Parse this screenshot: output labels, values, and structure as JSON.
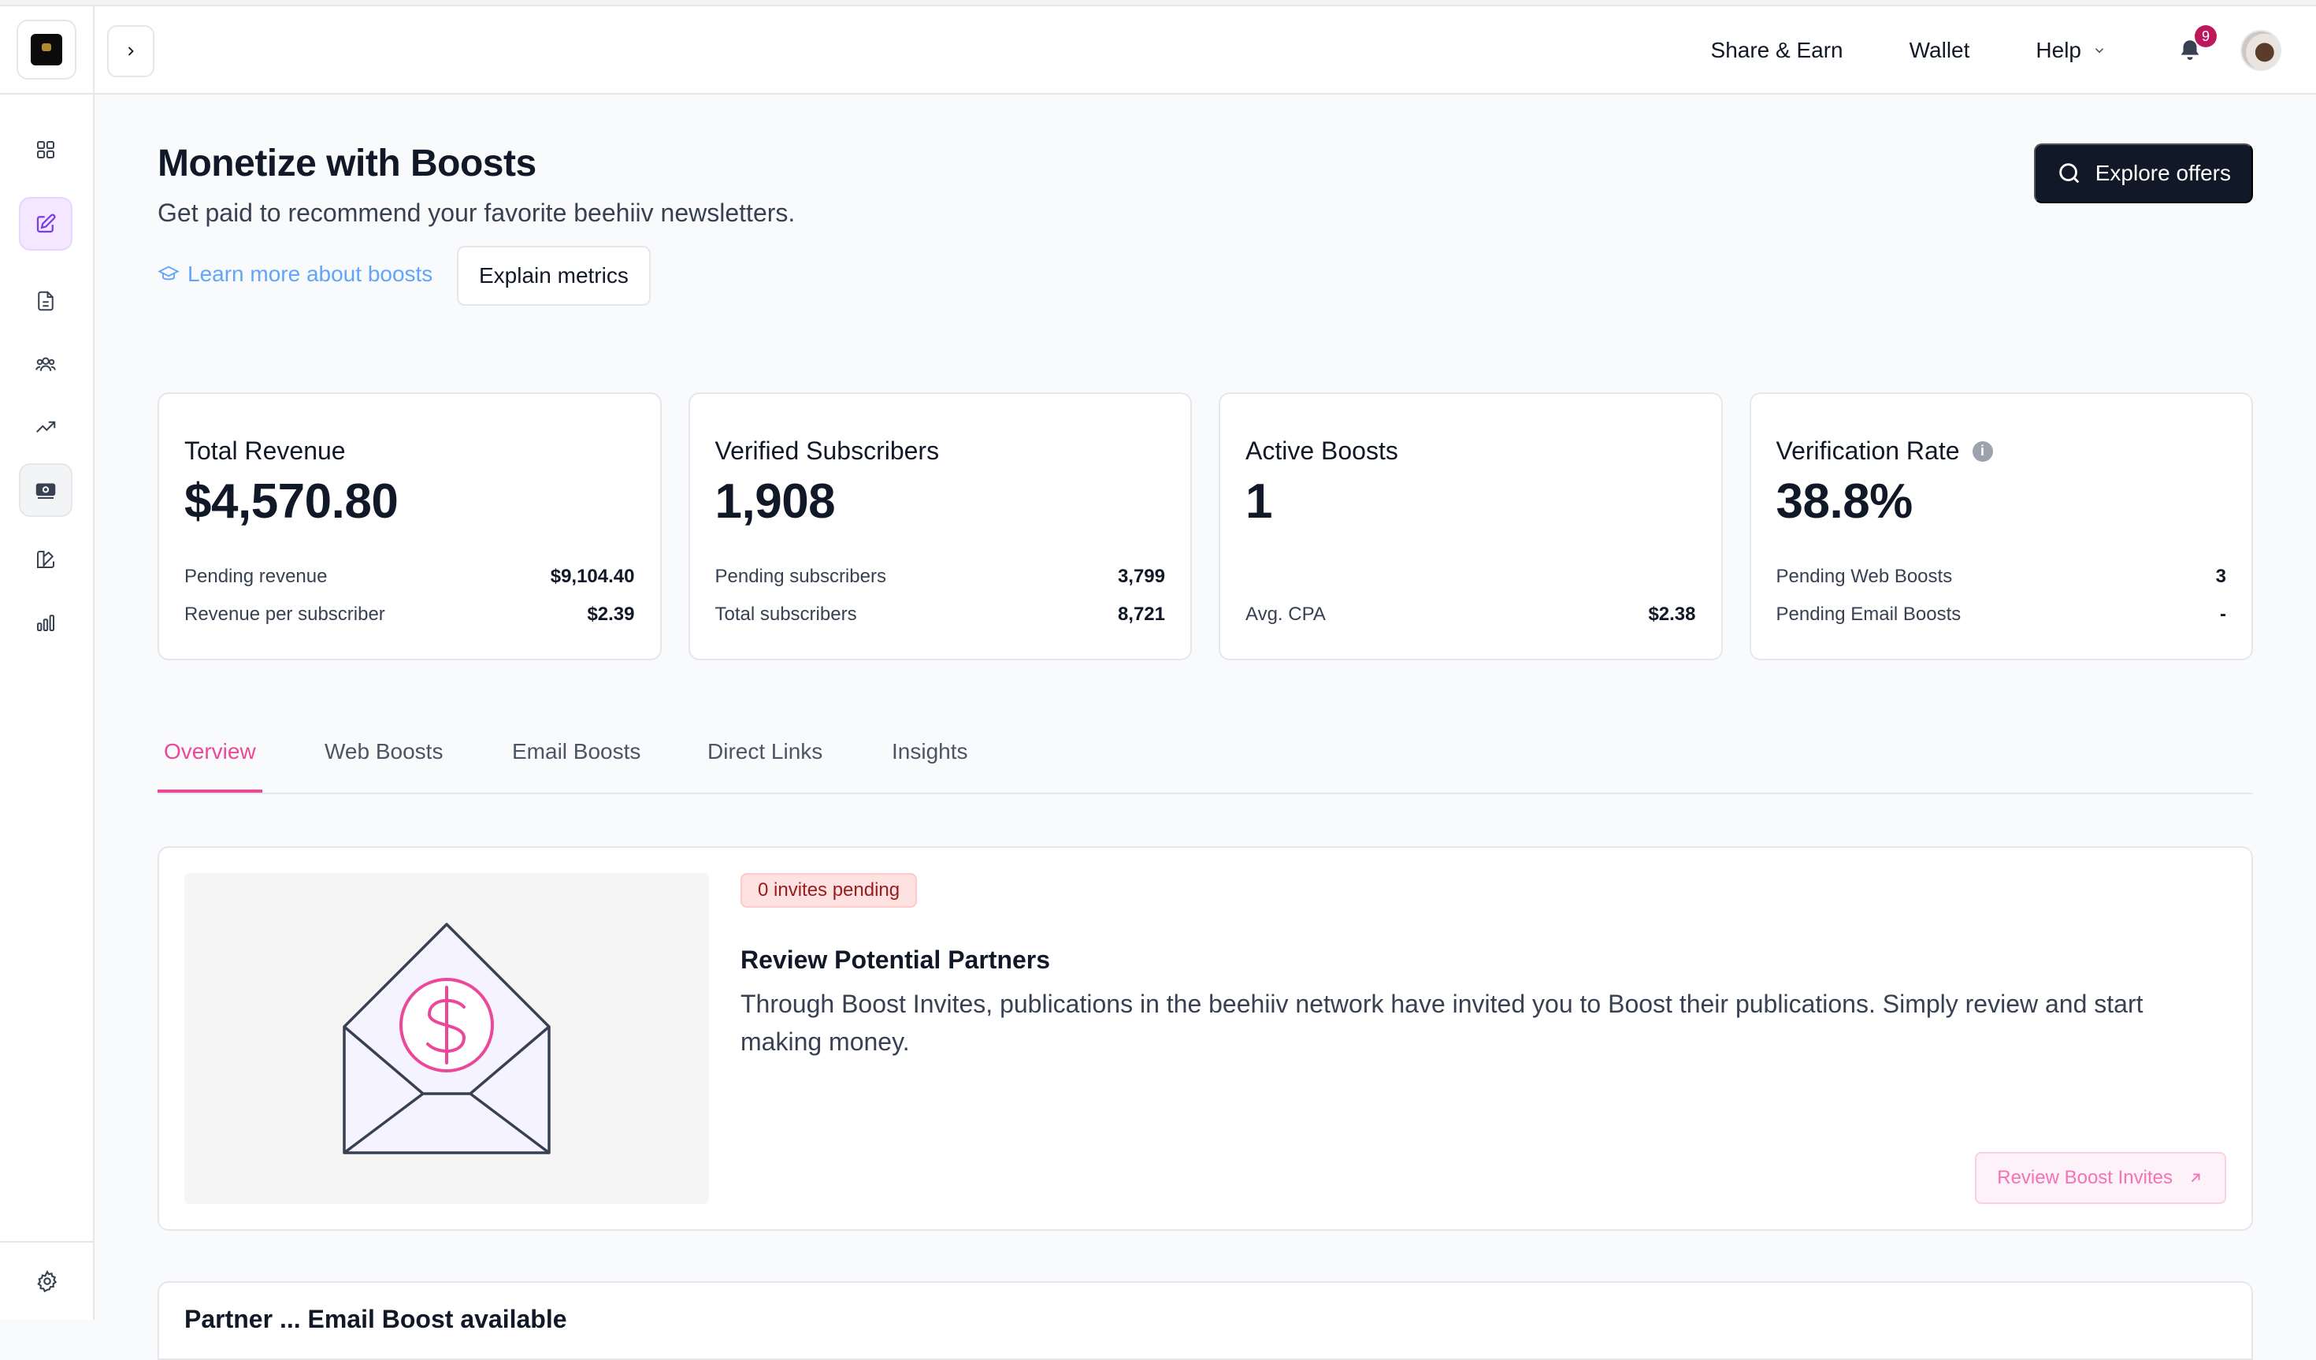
{
  "topbar": {
    "links": [
      {
        "label": "Share & Earn"
      },
      {
        "label": "Wallet"
      },
      {
        "label": "Help"
      }
    ],
    "notifications_count": "9"
  },
  "sidebar": {
    "items": [
      {
        "icon": "dashboard-grid-icon"
      },
      {
        "icon": "compose-icon",
        "active": true
      },
      {
        "icon": "posts-document-icon"
      },
      {
        "icon": "audience-icon"
      },
      {
        "icon": "growth-trend-icon"
      },
      {
        "icon": "monetize-money-icon",
        "selected": true
      },
      {
        "icon": "design-icon"
      },
      {
        "icon": "analytics-bars-icon"
      }
    ],
    "bottom_icon": "settings-gear-icon"
  },
  "header": {
    "title": "Monetize with Boosts",
    "subtitle": "Get paid to recommend your favorite beehiiv newsletters.",
    "learn_more": "Learn more about boosts",
    "explain_metrics": "Explain metrics",
    "explore_offers": "Explore offers"
  },
  "stats": [
    {
      "label": "Total Revenue",
      "value": "$4,570.80",
      "rows": [
        {
          "label": "Pending revenue",
          "value": "$9,104.40"
        },
        {
          "label": "Revenue per subscriber",
          "value": "$2.39"
        }
      ]
    },
    {
      "label": "Verified Subscribers",
      "value": "1,908",
      "rows": [
        {
          "label": "Pending subscribers",
          "value": "3,799"
        },
        {
          "label": "Total subscribers",
          "value": "8,721"
        }
      ]
    },
    {
      "label": "Active Boosts",
      "value": "1",
      "rows": [
        {
          "label": "Avg. CPA",
          "value": "$2.38"
        }
      ]
    },
    {
      "label": "Verification Rate",
      "value": "38.8%",
      "info_icon": "i",
      "rows": [
        {
          "label": "Pending Web Boosts",
          "value": "3"
        },
        {
          "label": "Pending Email Boosts",
          "value": "-"
        }
      ]
    }
  ],
  "tabs": [
    {
      "label": "Overview",
      "active": true
    },
    {
      "label": "Web Boosts"
    },
    {
      "label": "Email Boosts"
    },
    {
      "label": "Direct Links"
    },
    {
      "label": "Insights"
    }
  ],
  "promo": {
    "badge": "0 invites pending",
    "title": "Review Potential Partners",
    "description": "Through Boost Invites, publications in the beehiiv network have invited you to Boost their publications. Simply review and start making money.",
    "button": "Review Boost Invites"
  },
  "next_section": {
    "title": "Partner ... Email Boost available"
  },
  "colors": {
    "accent_pink": "#ec4899",
    "dark_button": "#111827",
    "link_blue": "#60a5fa",
    "notification_badge": "#be185d"
  }
}
